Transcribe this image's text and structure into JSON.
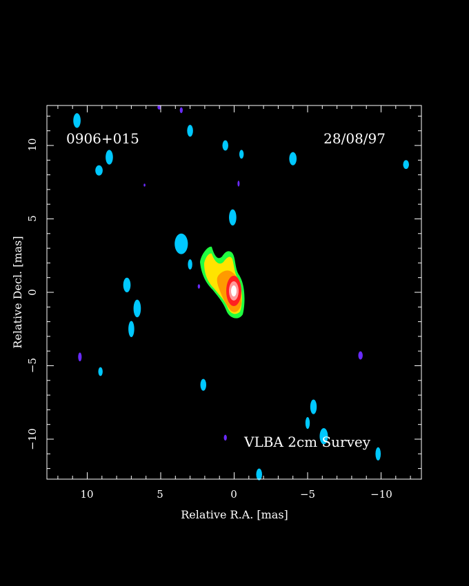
{
  "source_name": "0906+015",
  "obs_date": "28/08/97",
  "survey": "VLBA 2cm Survey",
  "axes": {
    "xlabel": "Relative R.A. [mas]",
    "ylabel": "Relative Decl. [mas]",
    "x_range": [
      12.8,
      -12.8
    ],
    "y_range": [
      -12.8,
      12.8
    ],
    "x_ticks": [
      10,
      5,
      0,
      -5,
      -10
    ],
    "x_tick_labels": [
      "10",
      "5",
      "0",
      "−5",
      "−10"
    ],
    "y_ticks": [
      10,
      5,
      0,
      -5,
      -10
    ],
    "y_tick_labels": [
      "10",
      "5",
      "0",
      "−5",
      "−10"
    ]
  },
  "colors": {
    "background": "#000000",
    "frame": "#ffffff",
    "noise": "#00c8ff",
    "noise_dim": "#2a5cff",
    "faint": "#6a2bff",
    "low": "#00ff60",
    "mid": "#ffff00",
    "high": "#ff8800",
    "peak": "#ff0000",
    "core": "#ffffff"
  },
  "noise_blobs": [
    [
      10.7,
      11.7,
      0.25,
      0.5
    ],
    [
      8.5,
      9.2,
      0.25,
      0.5
    ],
    [
      9.2,
      8.3,
      0.25,
      0.35
    ],
    [
      3.0,
      11.0,
      0.2,
      0.4
    ],
    [
      0.6,
      10.0,
      0.2,
      0.35
    ],
    [
      -0.5,
      9.4,
      0.15,
      0.3
    ],
    [
      -4.0,
      9.1,
      0.25,
      0.45
    ],
    [
      -11.7,
      8.7,
      0.2,
      0.3
    ],
    [
      0.1,
      5.1,
      0.25,
      0.55
    ],
    [
      3.6,
      3.3,
      0.45,
      0.7
    ],
    [
      3.0,
      1.9,
      0.15,
      0.35
    ],
    [
      7.3,
      0.5,
      0.25,
      0.5
    ],
    [
      6.6,
      -1.1,
      0.25,
      0.6
    ],
    [
      7.0,
      -2.5,
      0.2,
      0.55
    ],
    [
      9.1,
      -5.4,
      0.15,
      0.3
    ],
    [
      2.1,
      -6.3,
      0.2,
      0.4
    ],
    [
      -5.4,
      -7.8,
      0.22,
      0.5
    ],
    [
      -5.0,
      -8.9,
      0.15,
      0.4
    ],
    [
      -6.1,
      -9.8,
      0.28,
      0.55
    ],
    [
      -9.8,
      -11.0,
      0.18,
      0.45
    ],
    [
      -1.7,
      -12.4,
      0.2,
      0.4
    ]
  ],
  "faint_blobs": [
    [
      10.5,
      -4.4,
      0.12,
      0.3
    ],
    [
      -8.6,
      -4.3,
      0.15,
      0.28
    ],
    [
      0.6,
      -9.9,
      0.1,
      0.2
    ],
    [
      3.6,
      12.4,
      0.1,
      0.2
    ],
    [
      5.1,
      12.6,
      0.12,
      0.15
    ],
    [
      6.1,
      7.3,
      0.06,
      0.1
    ],
    [
      -0.3,
      7.4,
      0.07,
      0.2
    ],
    [
      2.4,
      0.4,
      0.08,
      0.15
    ]
  ]
}
